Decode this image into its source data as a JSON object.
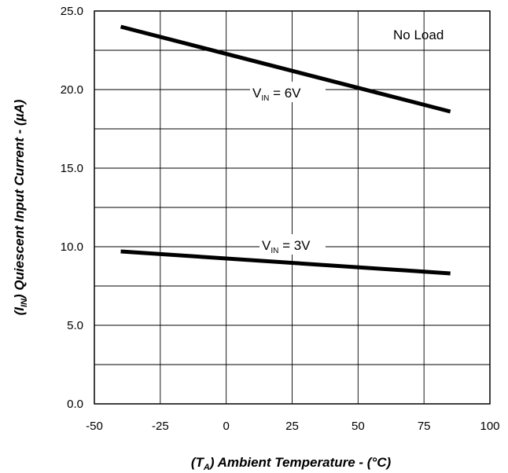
{
  "chart_data": {
    "type": "line",
    "xlabel_parts": {
      "open": "(T",
      "sub": "A",
      "close": ")  Ambient Temperature - (°C)"
    },
    "ylabel_parts": {
      "open": "(I",
      "sub": "IN",
      "close": ")  Quiescent Input Current - (µA)"
    },
    "xlim": [
      -50,
      100
    ],
    "ylim": [
      0,
      25
    ],
    "x_ticks": [
      "-50",
      "-25",
      "0",
      "25",
      "50",
      "75",
      "100"
    ],
    "y_ticks": [
      "0.0",
      "5.0",
      "10.0",
      "15.0",
      "20.0",
      "25.0"
    ],
    "grid": true,
    "annotations": {
      "no_load": "No Load",
      "vin6": {
        "main": "V",
        "sub": "IN",
        "rest": " = 6V"
      },
      "vin3": {
        "main": "V",
        "sub": "IN",
        "rest": " = 3V"
      }
    },
    "series": [
      {
        "x": [
          -40,
          85
        ],
        "y": [
          24.0,
          18.6
        ]
      },
      {
        "x": [
          -40,
          85
        ],
        "y": [
          9.7,
          8.3
        ]
      }
    ]
  },
  "colors": {
    "line": "#000000",
    "grid": "#000000",
    "background": "#ffffff"
  }
}
